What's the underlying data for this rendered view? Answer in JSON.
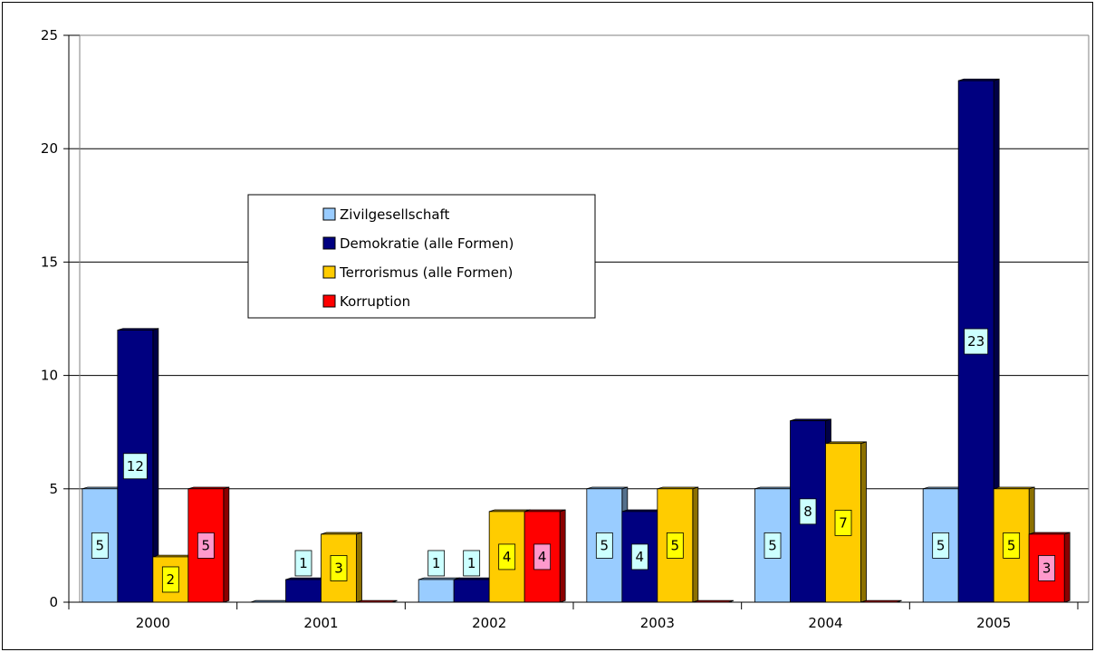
{
  "chart_data": {
    "type": "bar",
    "title": "",
    "xlabel": "",
    "ylabel": "",
    "categories": [
      "2000",
      "2001",
      "2002",
      "2003",
      "2004",
      "2005"
    ],
    "ylim": [
      0,
      25
    ],
    "yticks": [
      0,
      5,
      10,
      15,
      20,
      25
    ],
    "grid": true,
    "legend_position": "upper-left inside plot",
    "series": [
      {
        "name": "Zivilgesellschaft",
        "values": [
          5,
          0,
          1,
          5,
          5,
          5
        ],
        "color": "#99CCFF",
        "label_bg": "#CCFFFF"
      },
      {
        "name": "Demokratie (alle Formen)",
        "values": [
          12,
          1,
          1,
          4,
          8,
          23
        ],
        "color": "#000080",
        "label_bg": "#CCFFFF"
      },
      {
        "name": "Terrorismus (alle Formen)",
        "values": [
          2,
          3,
          4,
          5,
          7,
          5
        ],
        "color": "#FFCC00",
        "label_bg": "#FFFF00"
      },
      {
        "name": "Korruption",
        "values": [
          5,
          0,
          4,
          0,
          0,
          3
        ],
        "color": "#FF0000",
        "label_bg": "#FF99CC"
      }
    ],
    "data_labels": [
      [
        "5",
        "",
        "1",
        "5",
        "5",
        "5"
      ],
      [
        "12",
        "1",
        "1",
        "4",
        "8",
        "23"
      ],
      [
        "2",
        "3",
        "4",
        "5",
        "7",
        "5"
      ],
      [
        "5",
        "",
        "4",
        "",
        "",
        "3"
      ]
    ]
  }
}
